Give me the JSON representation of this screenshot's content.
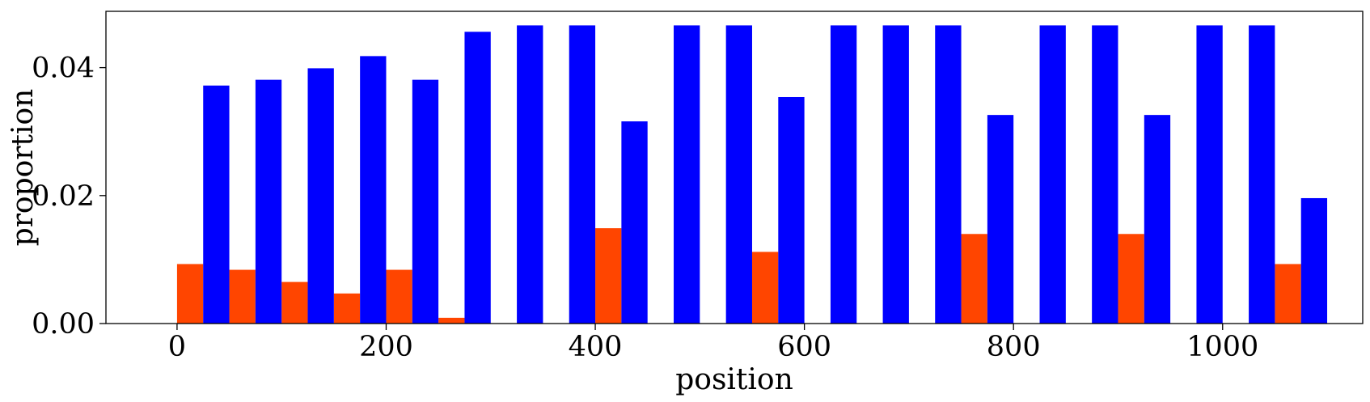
{
  "chart_data": {
    "type": "bar",
    "xlabel": "position",
    "ylabel": "proportion",
    "xlim": [
      -68,
      1134
    ],
    "ylim": [
      0,
      0.0488
    ],
    "x_ticks": [
      0,
      200,
      400,
      600,
      800,
      1000
    ],
    "x_tick_labels": [
      "0",
      "200",
      "400",
      "600",
      "800",
      "1000"
    ],
    "y_ticks": [
      0,
      0.02,
      0.04
    ],
    "y_tick_labels": [
      "0.00",
      "0.02",
      "0.04"
    ],
    "bar_width": 25,
    "grid": false,
    "legend": "none",
    "series": [
      {
        "color": "#ff4500",
        "x": [
          0,
          50,
          100,
          150,
          200,
          250,
          300,
          350,
          400,
          450,
          500,
          550,
          600,
          650,
          700,
          750,
          800,
          850,
          900,
          950,
          1000,
          1050
        ],
        "values": [
          0.0093,
          0.0084,
          0.0065,
          0.0047,
          0.0084,
          0.0009,
          0,
          0,
          0.0149,
          0,
          0,
          0.0112,
          0,
          0,
          0,
          0.014,
          0,
          0,
          0.014,
          0,
          0,
          0.0093
        ]
      },
      {
        "color": "#0000ff",
        "x": [
          25,
          75,
          125,
          175,
          225,
          275,
          325,
          375,
          425,
          475,
          525,
          575,
          625,
          675,
          725,
          775,
          825,
          875,
          925,
          975,
          1025,
          1075
        ],
        "values": [
          0.0372,
          0.0381,
          0.0399,
          0.0418,
          0.0381,
          0.0456,
          0.0466,
          0.0466,
          0.0316,
          0.0466,
          0.0466,
          0.0354,
          0.0466,
          0.0466,
          0.0466,
          0.0326,
          0.0466,
          0.0466,
          0.0326,
          0.0466,
          0.0466,
          0.0196
        ]
      }
    ]
  }
}
